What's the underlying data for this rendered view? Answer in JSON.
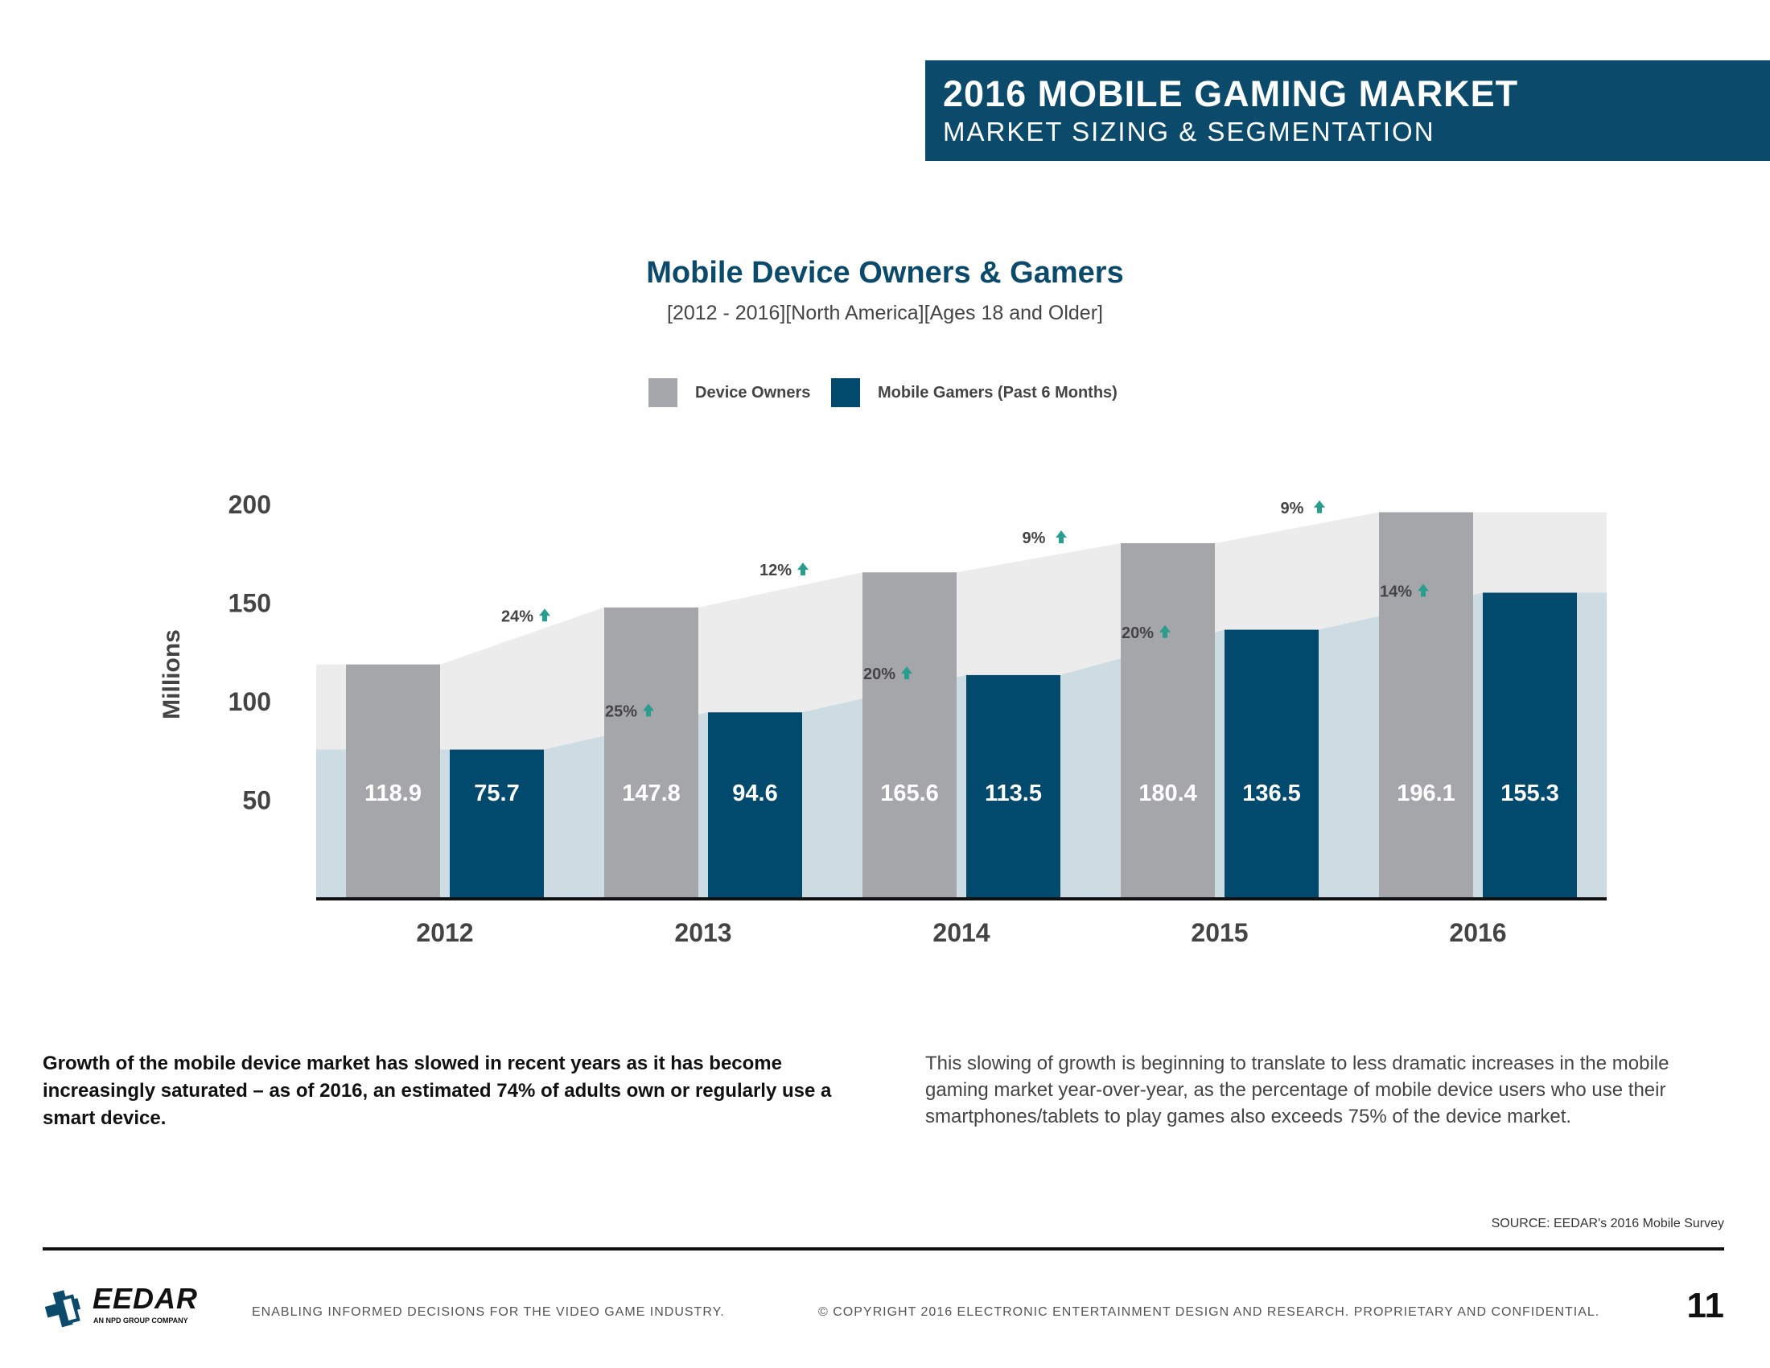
{
  "header": {
    "title": "2016 MOBILE GAMING MARKET",
    "subtitle": "MARKET SIZING & SEGMENTATION"
  },
  "colors": {
    "brand": "#0b4a6b",
    "device_owners": "#a5a6a9",
    "mobile_gamers": "#024a6d",
    "owners_band": "#ececec",
    "gamers_band": "#cddce3",
    "growth_arrow": "#2a9d8f"
  },
  "chart_data": {
    "type": "bar",
    "title": "Mobile Device Owners & Gamers",
    "subtitle": "[2012 - 2016][North America][Ages 18 and Older]",
    "ylabel": "Millions",
    "xlabel": "",
    "ylim": [
      0,
      200
    ],
    "yticks": [
      50,
      100,
      150,
      200
    ],
    "categories": [
      "2012",
      "2013",
      "2014",
      "2015",
      "2016"
    ],
    "series": [
      {
        "name": "Device Owners",
        "values": [
          118.9,
          147.8,
          165.6,
          180.4,
          196.1
        ],
        "labels": [
          "118.9",
          "147.8",
          "165.6",
          "180.4",
          "196.1"
        ]
      },
      {
        "name": "Mobile Gamers (Past 6 Months)",
        "values": [
          75.7,
          94.6,
          113.5,
          136.5,
          155.3
        ],
        "labels": [
          "75.7",
          "94.6",
          "113.5",
          "136.5",
          "155.3"
        ]
      }
    ],
    "growth": {
      "device_owners": [
        "24%",
        "12%",
        "9%",
        "9%"
      ],
      "mobile_gamers": [
        "25%",
        "20%",
        "20%",
        "14%"
      ]
    },
    "legend": "top-center"
  },
  "body": {
    "left": "Growth of the mobile device market has slowed in recent years as it has become increasingly saturated – as of 2016, an estimated 74% of adults own or regularly use a smart device.",
    "right": "This slowing of growth is beginning to translate to less dramatic increases in the mobile gaming market year-over-year, as the percentage of mobile device users who use their smartphones/tablets to play games also exceeds 75% of the device market."
  },
  "source": "SOURCE: EEDAR's 2016 Mobile Survey",
  "footer": {
    "logo_text": "EEDAR",
    "logo_sub": "AN NPD GROUP COMPANY",
    "tagline": "ENABLING INFORMED DECISIONS FOR THE  VIDEO GAME INDUSTRY.",
    "copyright": "© COPYRIGHT 2016 ELECTRONIC ENTERTAINMENT DESIGN AND RESEARCH. PROPRIETARY AND CONFIDENTIAL.",
    "page_number": "11"
  }
}
